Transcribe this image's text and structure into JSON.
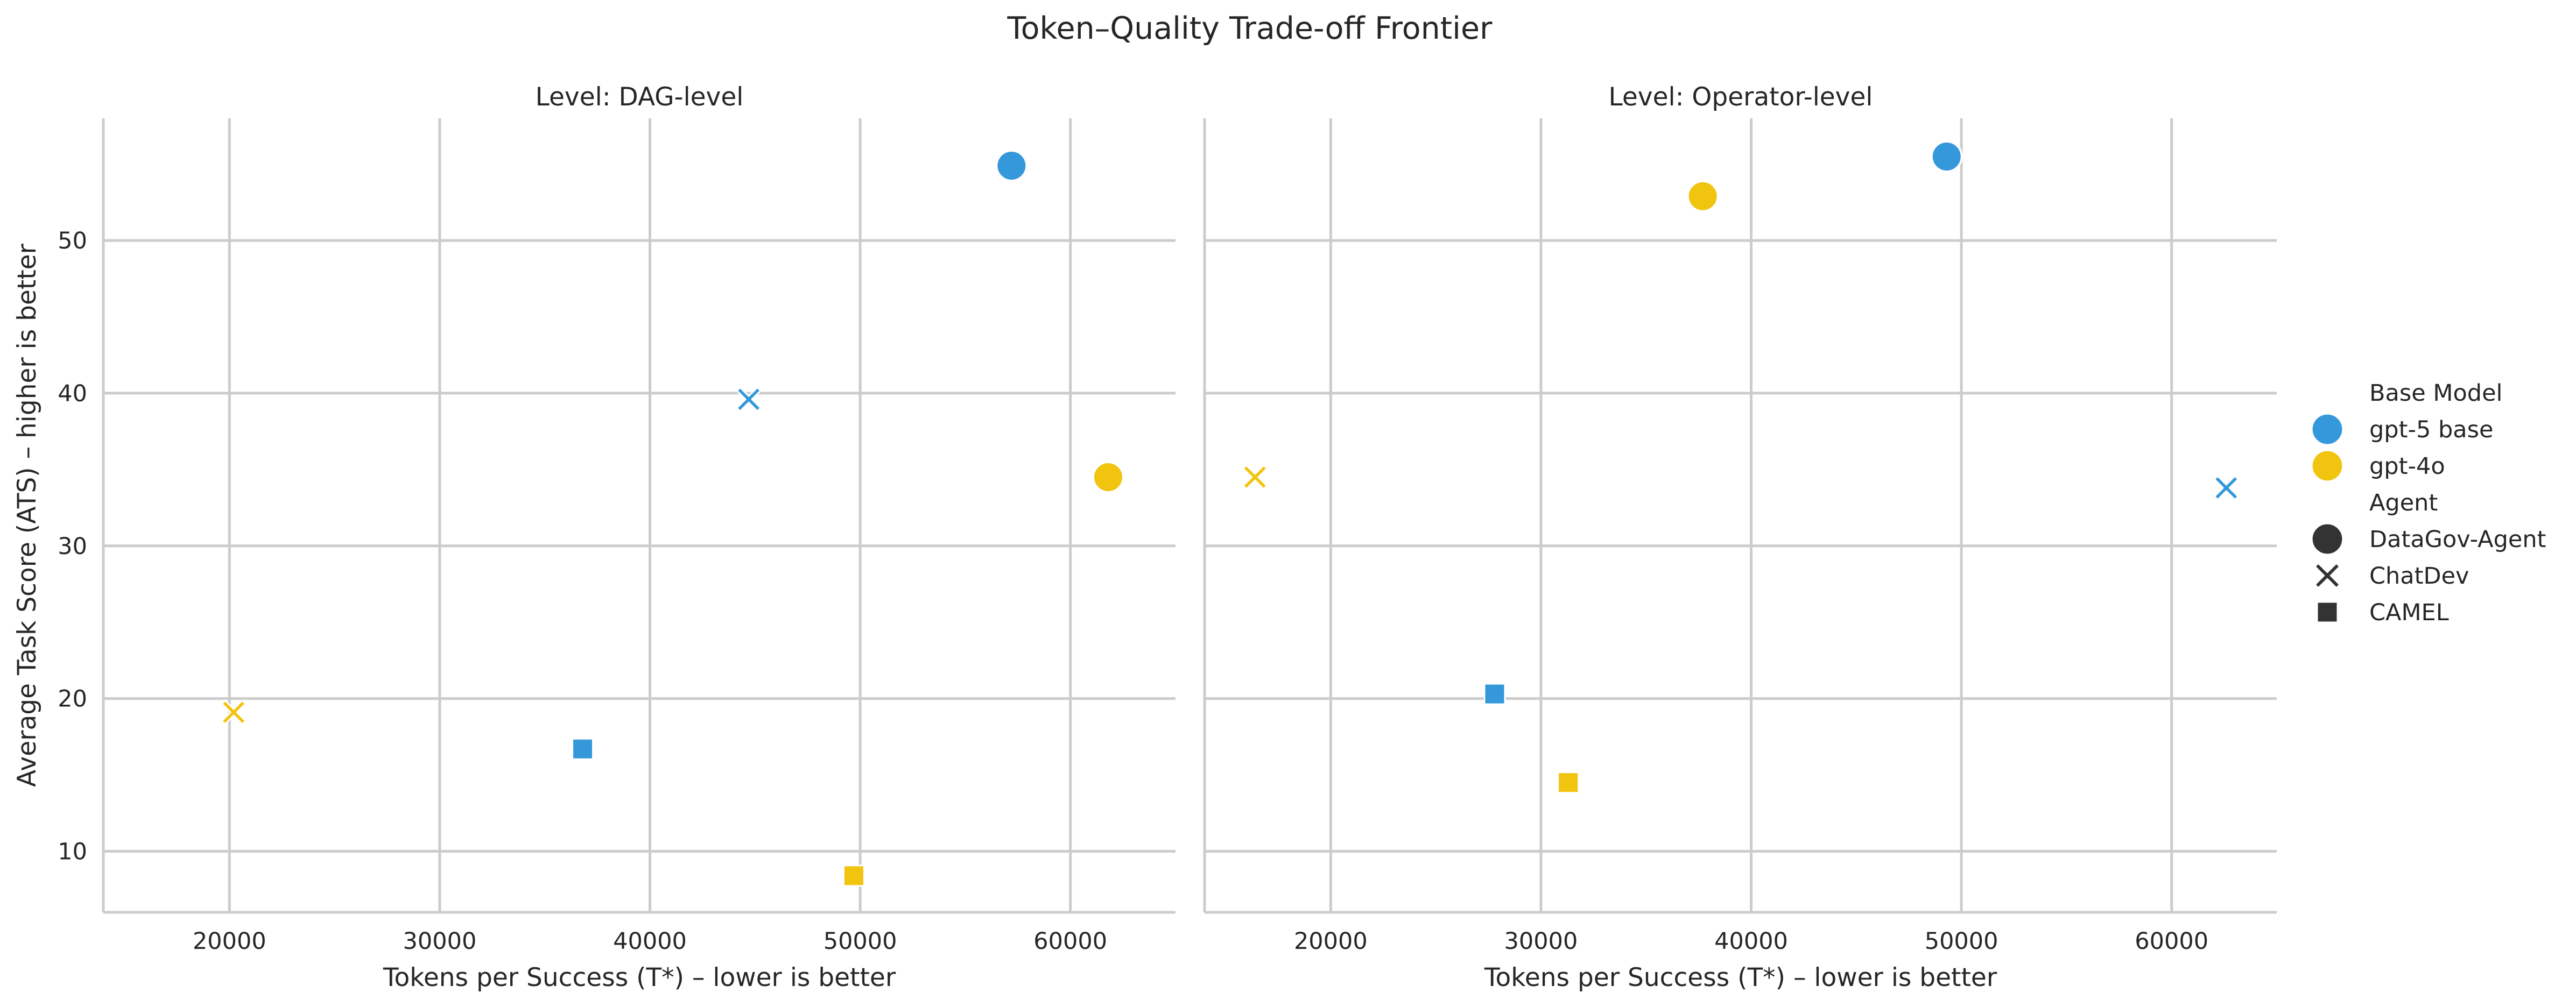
{
  "title": "Token–Quality Trade-off Frontier",
  "colors": {
    "gpt-5 base": "#3498db",
    "gpt-4o": "#f1c40f",
    "marker_legend": "#333333"
  },
  "legend": {
    "hue_title": "Base Model",
    "hue_items": [
      "gpt-5 base",
      "gpt-4o"
    ],
    "style_title": "Agent",
    "style_items": [
      {
        "label": "DataGov-Agent",
        "marker": "circle"
      },
      {
        "label": "ChatDev",
        "marker": "x"
      },
      {
        "label": "CAMEL",
        "marker": "square"
      }
    ],
    "placement": "right-center"
  },
  "chart_data": [
    {
      "type": "scatter",
      "title": "Level: DAG-level",
      "xlabel": "Tokens per Success (T*) – lower is better",
      "ylabel": "Average Task Score (ATS) – higher is better",
      "xlim": [
        14000,
        65000
      ],
      "ylim": [
        6,
        58
      ],
      "xticks": [
        20000,
        30000,
        40000,
        50000,
        60000
      ],
      "yticks": [
        10,
        20,
        30,
        40,
        50
      ],
      "grid": true,
      "points": [
        {
          "agent": "DataGov-Agent",
          "base_model": "gpt-5 base",
          "x": 57200,
          "y": 54.9
        },
        {
          "agent": "ChatDev",
          "base_model": "gpt-5 base",
          "x": 44700,
          "y": 39.6
        },
        {
          "agent": "CAMEL",
          "base_model": "gpt-5 base",
          "x": 36800,
          "y": 16.7
        },
        {
          "agent": "DataGov-Agent",
          "base_model": "gpt-4o",
          "x": 61800,
          "y": 34.5
        },
        {
          "agent": "ChatDev",
          "base_model": "gpt-4o",
          "x": 20200,
          "y": 19.1
        },
        {
          "agent": "CAMEL",
          "base_model": "gpt-4o",
          "x": 49700,
          "y": 8.4
        }
      ]
    },
    {
      "type": "scatter",
      "title": "Level: Operator-level",
      "xlabel": "Tokens per Success (T*) – lower is better",
      "ylabel": "",
      "xlim": [
        14000,
        65000
      ],
      "ylim": [
        6,
        58
      ],
      "xticks": [
        20000,
        30000,
        40000,
        50000,
        60000
      ],
      "yticks": [
        10,
        20,
        30,
        40,
        50
      ],
      "grid": true,
      "points": [
        {
          "agent": "DataGov-Agent",
          "base_model": "gpt-5 base",
          "x": 49300,
          "y": 55.5
        },
        {
          "agent": "ChatDev",
          "base_model": "gpt-5 base",
          "x": 62600,
          "y": 33.8
        },
        {
          "agent": "CAMEL",
          "base_model": "gpt-5 base",
          "x": 27800,
          "y": 20.3
        },
        {
          "agent": "DataGov-Agent",
          "base_model": "gpt-4o",
          "x": 37700,
          "y": 52.9
        },
        {
          "agent": "ChatDev",
          "base_model": "gpt-4o",
          "x": 16400,
          "y": 34.5
        },
        {
          "agent": "CAMEL",
          "base_model": "gpt-4o",
          "x": 31300,
          "y": 14.5
        }
      ]
    }
  ]
}
